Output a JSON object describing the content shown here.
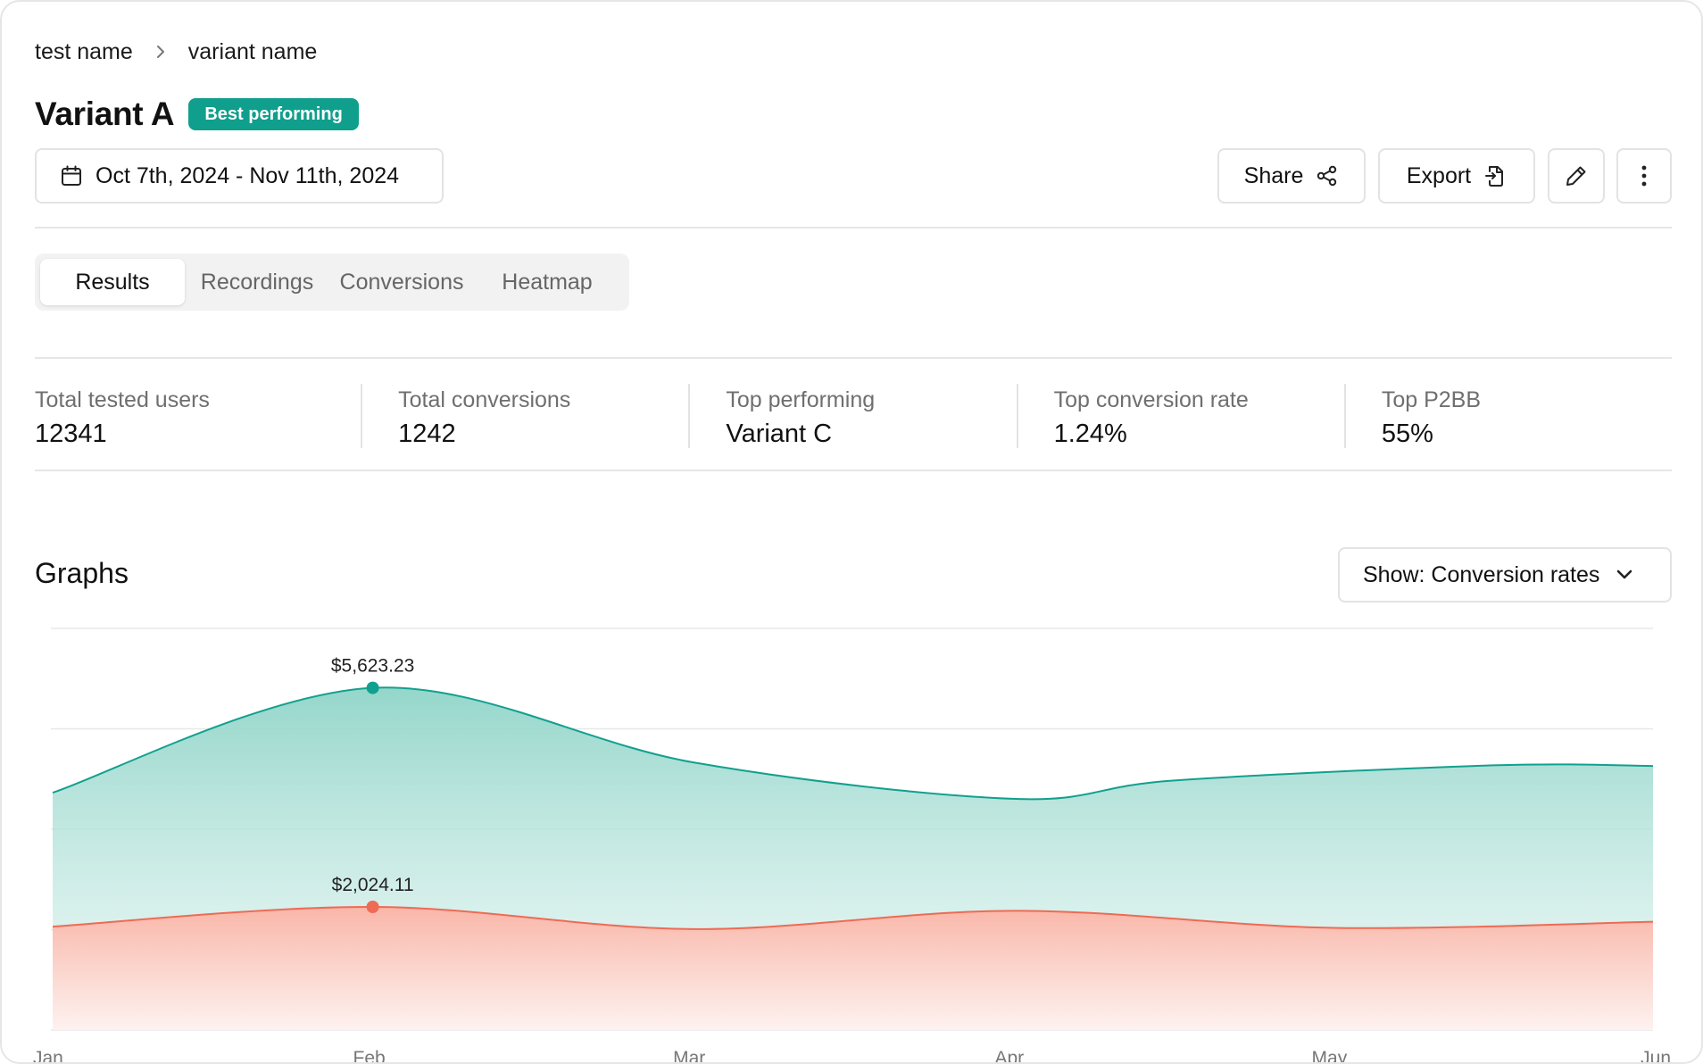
{
  "breadcrumb": {
    "test": "test name",
    "variant": "variant name"
  },
  "header": {
    "title": "Variant A",
    "badge": "Best performing"
  },
  "toolbar": {
    "date_range": "Oct 7th, 2024 - Nov 11th, 2024",
    "share_label": "Share",
    "export_label": "Export"
  },
  "tabs": [
    {
      "label": "Results",
      "active": true
    },
    {
      "label": "Recordings",
      "active": false
    },
    {
      "label": "Conversions",
      "active": false
    },
    {
      "label": "Heatmap",
      "active": false
    }
  ],
  "stats": [
    {
      "label": "Total tested users",
      "value": "12341"
    },
    {
      "label": "Total conversions",
      "value": "1242"
    },
    {
      "label": "Top performing",
      "value": "Variant C"
    },
    {
      "label": "Top conversion rate",
      "value": "1.24%"
    },
    {
      "label": "Top P2BB",
      "value": "55%"
    }
  ],
  "graphs": {
    "title": "Graphs",
    "show_label": "Show: Conversion rates"
  },
  "colors": {
    "accent": "#0f9f8c",
    "teal_line": "#12a08e",
    "red_line": "#ee6b55"
  },
  "chart_data": {
    "type": "area",
    "x": [
      "Jan",
      "Feb",
      "Mar",
      "Apr",
      "May",
      "Jun"
    ],
    "grid": true,
    "series": [
      {
        "color": "#12a08e",
        "points": [
          [
            0,
            3900
          ],
          [
            1,
            5623.23
          ],
          [
            2,
            4400
          ],
          [
            3,
            3800
          ],
          [
            3.5,
            4100
          ],
          [
            4.5,
            4350
          ],
          [
            5,
            4340
          ]
        ],
        "label_index": 1,
        "label": "$5,623.23"
      },
      {
        "color": "#ee6b55",
        "points": [
          [
            0,
            1700
          ],
          [
            1,
            2024.11
          ],
          [
            2,
            1660
          ],
          [
            3,
            1960
          ],
          [
            4,
            1680
          ],
          [
            5,
            1780
          ]
        ],
        "label_index": 1,
        "label": "$2,024.11"
      }
    ]
  }
}
